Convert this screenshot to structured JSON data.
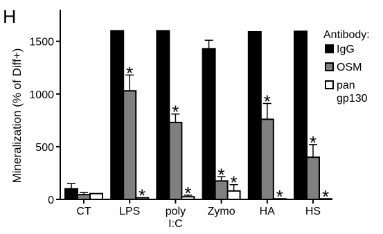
{
  "panel_label": "H",
  "legend": {
    "title": "Antibody:",
    "items": [
      "IgG",
      "OSM",
      "pan gp130"
    ]
  },
  "colors": {
    "IgG": "#000000",
    "OSM": "#808080",
    "pan gp130": "#ffffff"
  },
  "chart_data": {
    "type": "bar",
    "ylabel": "Mineralization (% of  Diff+)",
    "xlabel": "",
    "ylim": [
      0,
      1800
    ],
    "yticks": [
      0,
      500,
      1000,
      1500
    ],
    "grid": false,
    "legend_position": "right",
    "categories": [
      "CT",
      "LPS",
      "poly I:C",
      "Zymo",
      "HA",
      "HS"
    ],
    "category_lines": [
      [
        "CT"
      ],
      [
        "LPS"
      ],
      [
        "poly",
        "I:C"
      ],
      [
        "Zymo"
      ],
      [
        "HA"
      ],
      [
        "HS"
      ]
    ],
    "series": [
      {
        "name": "IgG",
        "values": [
          100,
          1600,
          1600,
          1430,
          1590,
          1595
        ],
        "errors": [
          50,
          0,
          0,
          80,
          0,
          0
        ],
        "sig": [
          false,
          false,
          false,
          false,
          false,
          false
        ]
      },
      {
        "name": "OSM",
        "values": [
          45,
          1030,
          730,
          175,
          760,
          400
        ],
        "errors": [
          20,
          150,
          80,
          40,
          150,
          120
        ],
        "sig": [
          false,
          true,
          true,
          true,
          true,
          true
        ]
      },
      {
        "name": "pan gp130",
        "values": [
          55,
          15,
          25,
          80,
          5,
          5
        ],
        "errors": [
          0,
          0,
          15,
          60,
          0,
          0
        ],
        "sig": [
          false,
          true,
          true,
          true,
          true,
          true
        ]
      }
    ],
    "significance_marker": "*"
  }
}
